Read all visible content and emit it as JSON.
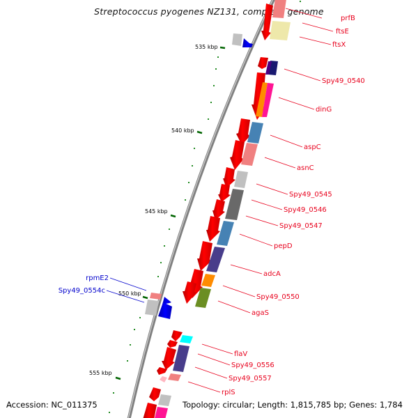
{
  "title": "Streptococcus pyogenes NZ131, complete genome",
  "footer": {
    "accession": "Accession: NC_011375",
    "topology": "Topology: circular; Length: 1,815,785 bp; Genes: 1,784"
  },
  "colors": {
    "forward_cds": "#ff0000",
    "reverse_cds": "#0000ff",
    "forward_label": "#e8001c",
    "reverse_label": "#0000cc",
    "backbone": "#808080",
    "tick": "#006400"
  },
  "ticks": [
    {
      "label": "535 kbp"
    },
    {
      "label": "540 kbp"
    },
    {
      "label": "545 kbp"
    },
    {
      "label": "550 kbp"
    },
    {
      "label": "555 kbp"
    }
  ],
  "forward_labels": [
    "prfB",
    "ftsE",
    "ftsX",
    "Spy49_0540",
    "dinG",
    "aspC",
    "asnC",
    "Spy49_0545",
    "Spy49_0546",
    "Spy49_0547",
    "pepD",
    "adcA",
    "Spy49_0550",
    "agaS",
    "flaV",
    "Spy49_0556",
    "Spy49_0557",
    "rplS"
  ],
  "reverse_labels": [
    "rpmE2",
    "Spy49_0554c"
  ]
}
